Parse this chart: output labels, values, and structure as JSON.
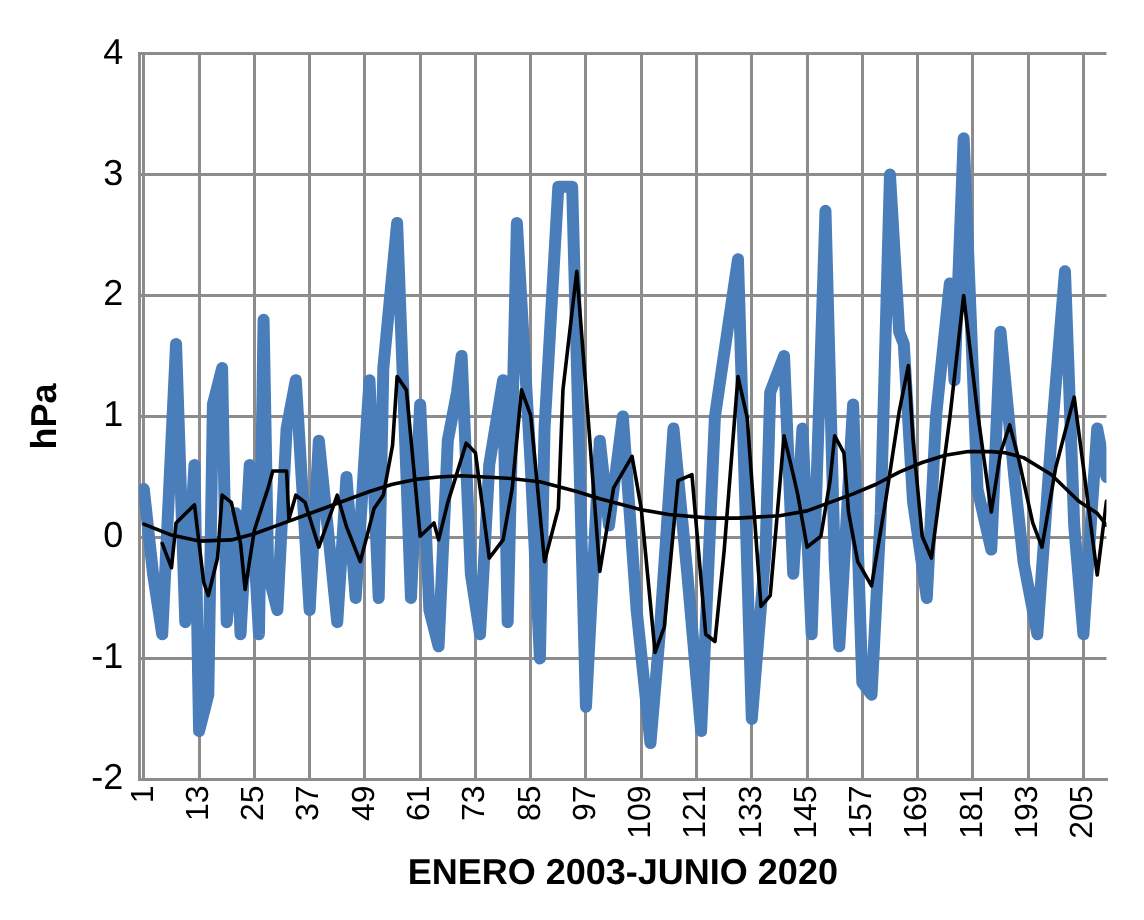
{
  "chart_data": {
    "type": "line",
    "xlabel": "ENERO 2003-JUNIO 2020",
    "ylabel": "hPa",
    "xlim": [
      0,
      210
    ],
    "xticks": [
      1,
      13,
      25,
      37,
      49,
      61,
      73,
      85,
      97,
      109,
      121,
      133,
      145,
      157,
      169,
      181,
      193,
      205
    ],
    "ylim": [
      -2,
      4
    ],
    "yticks": [
      -2,
      -1,
      0,
      1,
      2,
      3,
      4
    ],
    "grid": true,
    "marker": "none",
    "line_style": "solid",
    "series": [
      {
        "color": "#4a7ebb",
        "x": [
          1,
          3,
          5,
          8,
          10,
          12,
          13,
          15,
          16,
          18,
          19,
          21,
          22,
          24,
          26,
          27,
          28,
          30,
          32,
          34,
          37,
          39,
          43,
          45,
          47,
          50,
          52,
          53,
          56,
          59,
          61,
          63,
          65,
          67,
          69,
          70,
          72,
          74,
          76,
          79,
          80,
          82,
          85,
          87,
          88,
          91,
          94,
          97,
          100,
          102,
          105,
          108,
          111,
          113,
          116,
          119,
          122,
          125,
          130,
          133,
          136,
          137,
          140,
          142,
          144,
          146,
          149,
          151,
          152,
          155,
          157,
          159,
          161,
          163,
          165,
          166,
          168,
          171,
          173,
          176,
          177,
          179,
          182,
          185,
          187,
          190,
          192,
          195,
          198,
          201,
          203,
          205,
          208,
          210
        ],
        "values": [
          0.4,
          -0.3,
          -0.8,
          1.6,
          -0.7,
          0.6,
          -1.6,
          -1.3,
          1.1,
          1.4,
          -0.7,
          0.2,
          -0.8,
          0.6,
          -0.8,
          1.8,
          -0.3,
          -0.6,
          0.9,
          1.3,
          -0.6,
          0.8,
          -0.7,
          0.5,
          -0.5,
          1.3,
          -0.5,
          1.4,
          2.6,
          -0.5,
          1.1,
          -0.6,
          -0.9,
          0.8,
          1.2,
          1.5,
          -0.3,
          -0.8,
          0.6,
          1.3,
          -0.7,
          2.6,
          0.6,
          -1.0,
          0.9,
          2.9,
          2.9,
          -1.4,
          0.8,
          0.1,
          1.0,
          -0.6,
          -1.7,
          -0.8,
          0.9,
          -0.3,
          -1.6,
          1.0,
          2.3,
          -1.5,
          -0.1,
          1.2,
          1.5,
          -0.3,
          0.9,
          -0.8,
          2.7,
          -0.2,
          -0.9,
          1.1,
          -1.2,
          -1.3,
          0.2,
          3.0,
          1.7,
          1.6,
          0.3,
          -0.5,
          1.0,
          2.1,
          1.3,
          3.3,
          0.4,
          -0.1,
          1.7,
          0.5,
          -0.2,
          -0.8,
          0.8,
          2.2,
          0.1,
          -0.8,
          0.9,
          0.5
        ]
      },
      {
        "color": "#000000",
        "x": [
          5,
          7,
          8,
          12,
          14,
          15,
          17,
          18,
          20,
          22,
          23,
          25,
          28,
          29,
          32,
          32.5,
          34,
          36,
          39,
          43,
          45,
          48,
          51,
          53,
          55,
          56,
          58,
          61,
          64,
          65,
          67,
          68,
          71,
          73,
          76,
          79,
          81,
          83,
          85,
          88,
          91,
          92,
          95,
          97,
          100,
          103,
          107,
          109,
          112,
          114,
          117,
          120,
          123,
          125,
          127,
          130,
          132,
          135,
          137,
          140,
          142,
          143,
          145,
          148,
          150,
          151,
          153,
          154,
          156,
          159,
          162,
          165,
          167,
          168,
          170,
          172,
          176,
          179,
          182,
          185,
          187,
          189,
          191,
          194,
          196,
          199,
          203,
          205,
          208,
          210
        ],
        "values": [
          -0.05,
          -0.25,
          0.12,
          0.27,
          -0.37,
          -0.48,
          -0.17,
          0.35,
          0.29,
          -0.05,
          -0.43,
          0.06,
          0.41,
          0.55,
          0.55,
          0.15,
          0.35,
          0.29,
          -0.08,
          0.35,
          0.09,
          -0.2,
          0.24,
          0.35,
          0.76,
          1.33,
          1.22,
          0.01,
          0.12,
          -0.02,
          0.29,
          0.41,
          0.78,
          0.7,
          -0.17,
          -0.02,
          0.41,
          1.22,
          1.01,
          -0.2,
          0.24,
          1.22,
          2.2,
          1.22,
          -0.28,
          0.41,
          0.67,
          0.24,
          -0.95,
          -0.74,
          0.47,
          0.52,
          -0.8,
          -0.86,
          -0.11,
          1.33,
          0.99,
          -0.57,
          -0.48,
          0.84,
          0.52,
          0.35,
          -0.08,
          0.01,
          0.47,
          0.84,
          0.7,
          0.21,
          -0.2,
          -0.4,
          0.29,
          1.04,
          1.42,
          0.81,
          0.01,
          -0.17,
          0.99,
          2.0,
          1.04,
          0.21,
          0.7,
          0.93,
          0.64,
          0.12,
          -0.08,
          0.58,
          1.16,
          0.58,
          -0.31,
          0.3
        ]
      },
      {
        "color": "#000000",
        "x": [
          1,
          7,
          13,
          20,
          25,
          30,
          40,
          50,
          55,
          60,
          65,
          70,
          80,
          87,
          95,
          100,
          109,
          115,
          124,
          130,
          139,
          145,
          150,
          155,
          160,
          165,
          170,
          175,
          180,
          185,
          188,
          192,
          198,
          204,
          208,
          210
        ],
        "values": [
          0.11,
          0.02,
          -0.03,
          -0.02,
          0.03,
          0.1,
          0.24,
          0.38,
          0.44,
          0.48,
          0.5,
          0.51,
          0.49,
          0.46,
          0.38,
          0.32,
          0.23,
          0.19,
          0.16,
          0.16,
          0.18,
          0.22,
          0.29,
          0.36,
          0.44,
          0.54,
          0.62,
          0.68,
          0.71,
          0.71,
          0.7,
          0.66,
          0.52,
          0.3,
          0.2,
          0.1
        ]
      }
    ]
  }
}
